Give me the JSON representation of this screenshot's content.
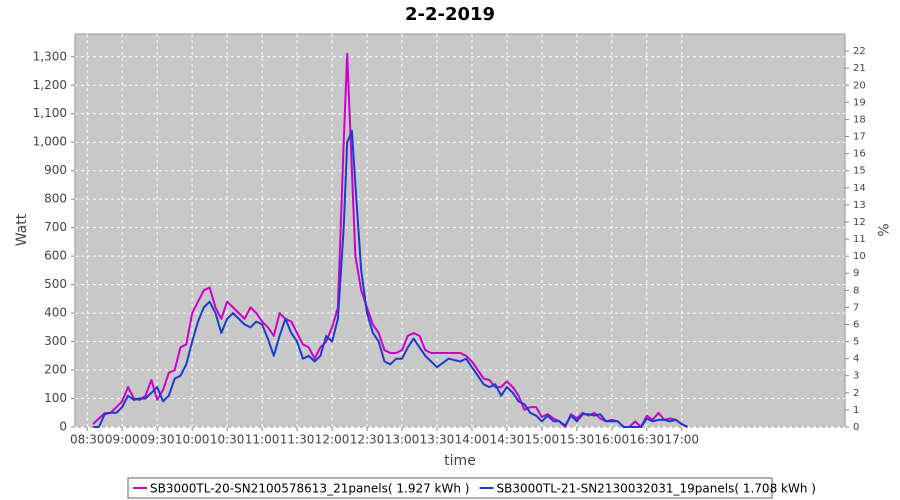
{
  "chart_data": {
    "type": "line",
    "title": "2-2-2019",
    "xlabel": "time",
    "ylabel": "Watt",
    "y2label": "%",
    "x": [
      515,
      520,
      525,
      530,
      535,
      540,
      545,
      550,
      555,
      560,
      565,
      570,
      575,
      580,
      585,
      590,
      595,
      600,
      605,
      610,
      615,
      620,
      625,
      630,
      635,
      640,
      645,
      650,
      655,
      660,
      665,
      670,
      675,
      680,
      685,
      690,
      695,
      700,
      705,
      710,
      715,
      720,
      725,
      730,
      733,
      737,
      740,
      745,
      750,
      755,
      760,
      765,
      770,
      775,
      780,
      785,
      790,
      795,
      800,
      805,
      810,
      820,
      830,
      835,
      840,
      845,
      850,
      855,
      860,
      865,
      870,
      875,
      880,
      885,
      890,
      895,
      900,
      905,
      910,
      915,
      920,
      925,
      930,
      935,
      940,
      945,
      950,
      955,
      960,
      965,
      970,
      975,
      980,
      985,
      990,
      995,
      1000,
      1005,
      1010,
      1015,
      1020,
      1025
    ],
    "series": [
      {
        "name": "SB3000TL-20-SN2100578613_21panels( 1.927 kWh )",
        "color": "#cc00cc",
        "values": [
          10,
          30,
          48,
          50,
          70,
          90,
          140,
          100,
          95,
          110,
          165,
          95,
          130,
          190,
          200,
          280,
          290,
          400,
          440,
          480,
          490,
          420,
          380,
          440,
          420,
          400,
          380,
          420,
          400,
          370,
          350,
          320,
          400,
          380,
          370,
          330,
          290,
          280,
          240,
          280,
          300,
          350,
          420,
          1000,
          1310,
          900,
          600,
          480,
          420,
          360,
          330,
          270,
          260,
          260,
          270,
          320,
          330,
          320,
          270,
          260,
          260,
          260,
          260,
          250,
          230,
          200,
          170,
          165,
          140,
          140,
          160,
          140,
          110,
          60,
          70,
          70,
          35,
          45,
          30,
          20,
          0,
          45,
          30,
          50,
          40,
          50,
          30,
          20,
          25,
          20,
          0,
          0,
          20,
          0,
          40,
          25,
          50,
          25,
          30,
          25,
          10,
          0
        ]
      },
      {
        "name": "SB3000TL-21-SN2130032031_19panels( 1.708 kWh )",
        "color": "#1a3ccc",
        "values": [
          0,
          0,
          45,
          50,
          50,
          70,
          110,
          95,
          100,
          100,
          120,
          140,
          90,
          110,
          170,
          180,
          220,
          300,
          370,
          420,
          440,
          400,
          330,
          380,
          400,
          380,
          360,
          350,
          370,
          360,
          310,
          250,
          320,
          380,
          330,
          300,
          240,
          250,
          230,
          250,
          320,
          300,
          380,
          700,
          1000,
          1040,
          850,
          550,
          400,
          330,
          300,
          230,
          220,
          240,
          240,
          280,
          310,
          280,
          250,
          230,
          210,
          240,
          230,
          240,
          210,
          180,
          150,
          140,
          150,
          110,
          140,
          120,
          90,
          80,
          50,
          40,
          20,
          40,
          20,
          20,
          5,
          40,
          20,
          45,
          45,
          40,
          45,
          20,
          20,
          20,
          0,
          0,
          0,
          0,
          30,
          20,
          25,
          25,
          20,
          25,
          10,
          0
        ]
      }
    ],
    "xlim": [
      499.5,
      1160
    ],
    "xticks": [
      {
        "value": 510,
        "label": "08:30"
      },
      {
        "value": 540,
        "label": "09:00"
      },
      {
        "value": 570,
        "label": "09:30"
      },
      {
        "value": 600,
        "label": "10:00"
      },
      {
        "value": 630,
        "label": "10:30"
      },
      {
        "value": 660,
        "label": "11:00"
      },
      {
        "value": 690,
        "label": "11:30"
      },
      {
        "value": 720,
        "label": "12:00"
      },
      {
        "value": 750,
        "label": "12:30"
      },
      {
        "value": 780,
        "label": "13:00"
      },
      {
        "value": 810,
        "label": "13:30"
      },
      {
        "value": 840,
        "label": "14:00"
      },
      {
        "value": 870,
        "label": "14:30"
      },
      {
        "value": 900,
        "label": "15:00"
      },
      {
        "value": 930,
        "label": "15:30"
      },
      {
        "value": 960,
        "label": "16:00"
      },
      {
        "value": 990,
        "label": "16:30"
      },
      {
        "value": 1020,
        "label": "17:00"
      }
    ],
    "ylim": [
      0,
      1380
    ],
    "yticks": [
      0,
      100,
      200,
      300,
      400,
      500,
      600,
      700,
      800,
      900,
      {
        "value": 1000,
        "label": "1,000"
      },
      {
        "value": 1100,
        "label": "1,100"
      },
      {
        "value": 1200,
        "label": "1,200"
      },
      {
        "value": 1300,
        "label": "1,300"
      }
    ],
    "y2lim": [
      0,
      23
    ],
    "y2ticks": [
      0,
      1,
      2,
      3,
      4,
      5,
      6,
      7,
      8,
      9,
      10,
      11,
      12,
      13,
      14,
      15,
      16,
      17,
      18,
      19,
      20,
      21,
      22
    ],
    "grid": true
  }
}
